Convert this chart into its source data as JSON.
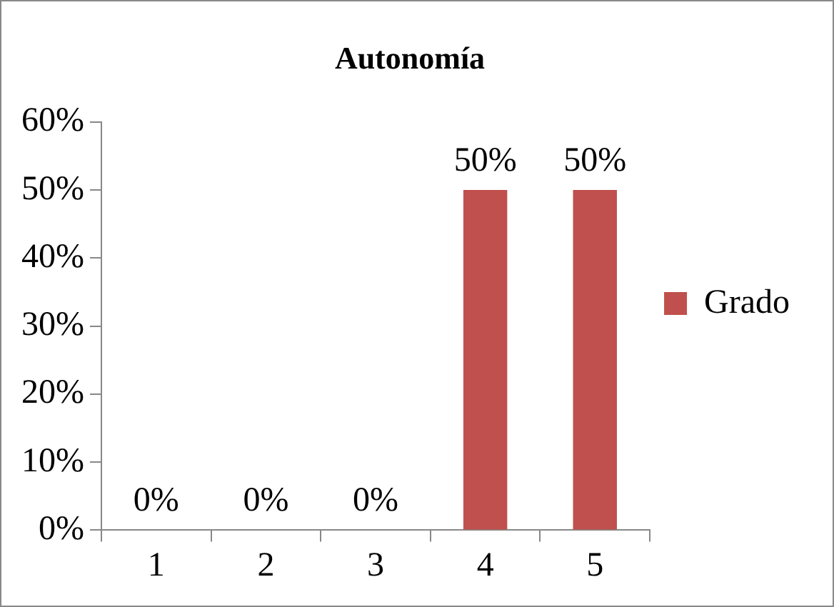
{
  "chart_data": {
    "type": "bar",
    "title": "Autonomía",
    "categories": [
      "1",
      "2",
      "3",
      "4",
      "5"
    ],
    "series": [
      {
        "name": "Grado",
        "color": "#c0504d",
        "values": [
          0,
          0,
          0,
          50,
          50
        ],
        "value_labels": [
          "0%",
          "0%",
          "0%",
          "50%",
          "50%"
        ]
      }
    ],
    "ylim": [
      0,
      60
    ],
    "yticks": [
      {
        "value": 0,
        "label": "0%"
      },
      {
        "value": 10,
        "label": "10%"
      },
      {
        "value": 20,
        "label": "20%"
      },
      {
        "value": 30,
        "label": "30%"
      },
      {
        "value": 40,
        "label": "40%"
      },
      {
        "value": 50,
        "label": "50%"
      },
      {
        "value": 60,
        "label": "60%"
      }
    ],
    "grid": false,
    "legend": "right"
  }
}
